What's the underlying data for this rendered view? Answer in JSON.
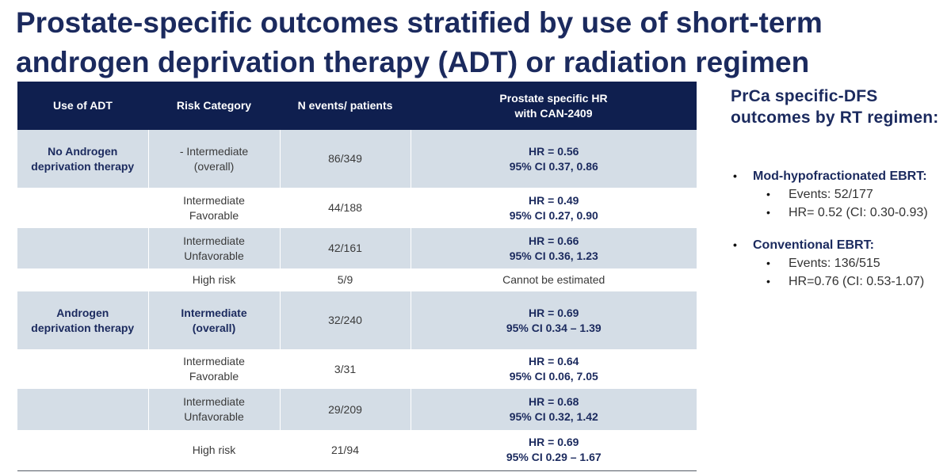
{
  "title": {
    "line1": "Prostate-specific outcomes stratified by use of short-term",
    "line2": "androgen deprivation therapy (ADT) or radiation regimen"
  },
  "table": {
    "headers": {
      "use_of_adt": "Use of ADT",
      "risk_category": "Risk Category",
      "n_events": "N events/ patients",
      "hr_line1": "Prostate specific HR",
      "hr_line2": "with CAN-2409"
    },
    "groups": [
      {
        "label_line1": "No Androgen",
        "label_line2": "deprivation therapy",
        "rows": [
          {
            "risk_line1": "- Intermediate",
            "risk_line2": "(overall)",
            "n": "86/349",
            "hr": "HR = 0.56",
            "ci": "95% CI 0.37, 0.86"
          },
          {
            "risk_line1": "Intermediate",
            "risk_line2": "Favorable",
            "n": "44/188",
            "hr": "HR = 0.49",
            "ci": "95% CI 0.27, 0.90"
          },
          {
            "risk_line1": "Intermediate",
            "risk_line2": "Unfavorable",
            "n": "42/161",
            "hr": "HR = 0.66",
            "ci": "95% CI 0.36, 1.23"
          },
          {
            "risk_line1": "High risk",
            "risk_line2": "",
            "n": "5/9",
            "hr": "Cannot be estimated",
            "ci": ""
          }
        ]
      },
      {
        "label_line1": "Androgen",
        "label_line2": "deprivation therapy",
        "rows": [
          {
            "risk_line1": "Intermediate",
            "risk_line2": "(overall)",
            "n": "32/240",
            "hr": "HR = 0.69",
            "ci": "95% CI 0.34 – 1.39"
          },
          {
            "risk_line1": "Intermediate",
            "risk_line2": "Favorable",
            "n": "3/31",
            "hr": "HR = 0.64",
            "ci": "95% CI 0.06, 7.05"
          },
          {
            "risk_line1": "Intermediate",
            "risk_line2": "Unfavorable",
            "n": "29/209",
            "hr": "HR = 0.68",
            "ci": "95% CI 0.32, 1.42"
          },
          {
            "risk_line1": "High risk",
            "risk_line2": "",
            "n": "21/94",
            "hr": "HR = 0.69",
            "ci": "95% CI 0.29 – 1.67"
          }
        ]
      }
    ]
  },
  "side_panel": {
    "title_line1": "PrCa specific-DFS",
    "title_line2": "outcomes by RT regimen:",
    "bullet_glyph": "•",
    "regimens": [
      {
        "name": "Mod-hypofractionated EBRT:",
        "events": "Events: 52/177",
        "hr": "HR= 0.52 (CI: 0.30-0.93)"
      },
      {
        "name": "Conventional EBRT:",
        "events": "Events: 136/515",
        "hr": "HR=0.76 (CI: 0.53-1.07)"
      }
    ]
  },
  "colors": {
    "title": "#1b2a5e",
    "header_bg": "#0f1f4f",
    "row_shade": "#d4dde6"
  }
}
